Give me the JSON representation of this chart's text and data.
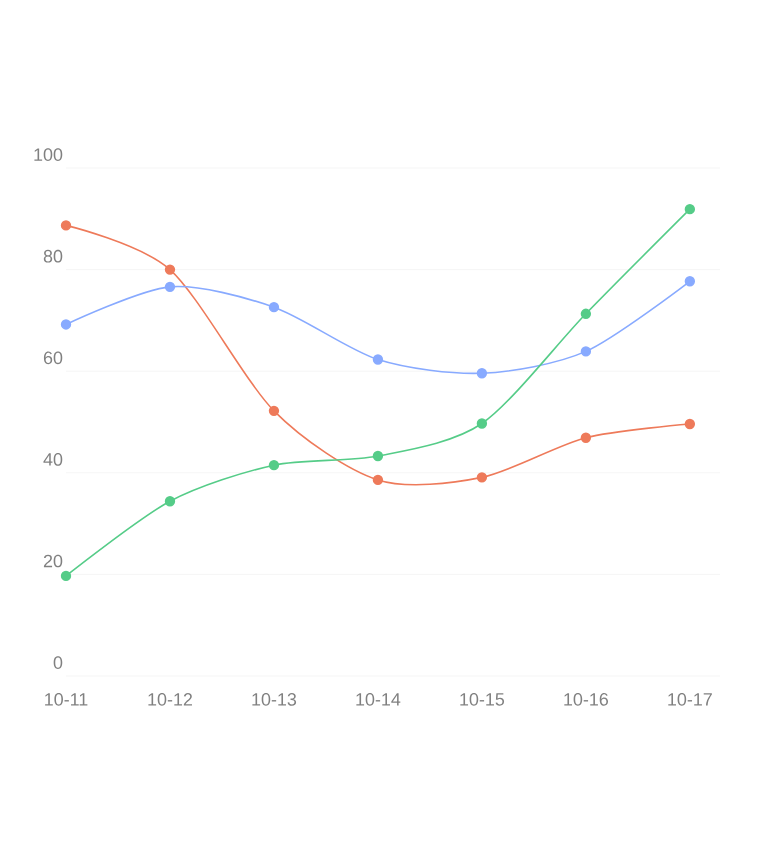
{
  "chart_data": {
    "type": "line",
    "categories": [
      "10-11",
      "10-12",
      "10-13",
      "10-14",
      "10-15",
      "10-16",
      "10-17"
    ],
    "series": [
      {
        "color": "#ee7a5a",
        "values": [
          88.7,
          80,
          52.2,
          38.6,
          39.1,
          46.9,
          49.6
        ]
      },
      {
        "color": "#88aaff",
        "values": [
          69.2,
          76.6,
          72.6,
          62.3,
          59.6,
          63.9,
          77.7
        ]
      },
      {
        "color": "#55cc88",
        "values": [
          19.7,
          34.4,
          41.5,
          43.3,
          49.7,
          71.3,
          91.9
        ]
      }
    ],
    "ylim": [
      0,
      100
    ],
    "yticks": [
      0,
      20,
      40,
      60,
      80,
      100
    ],
    "grid": "y",
    "marker": "circle",
    "line_style": "solid"
  }
}
